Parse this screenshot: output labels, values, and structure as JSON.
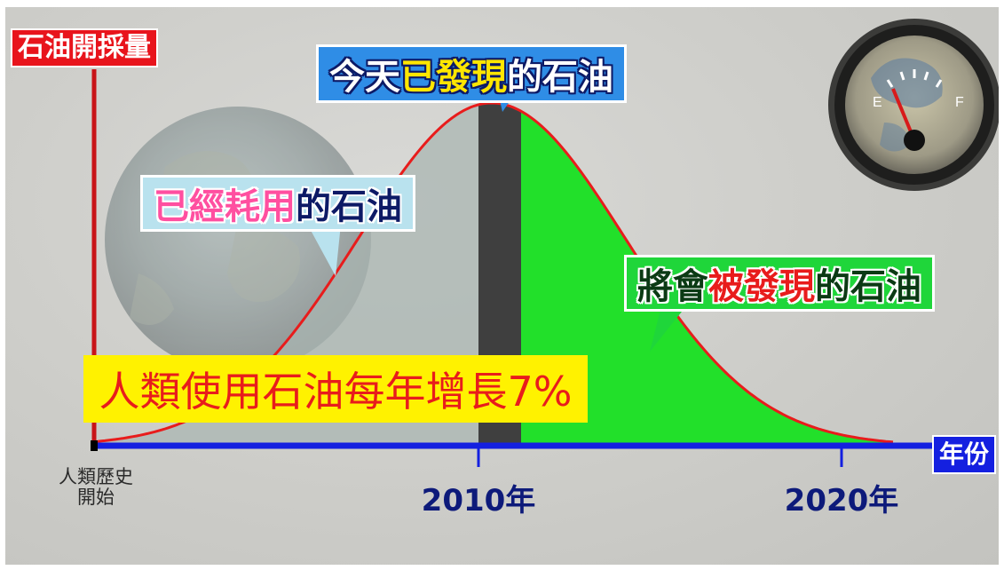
{
  "y_axis_title": "石油開採量",
  "x_axis_title": "年份",
  "callouts": {
    "today": {
      "segments": [
        {
          "text": "今天",
          "color": "white"
        },
        {
          "text": "已發現",
          "color": "yellow"
        },
        {
          "text": "的石油",
          "color": "white"
        }
      ]
    },
    "consumed": {
      "segments": [
        {
          "text": "已經耗用",
          "color": "pink"
        },
        {
          "text": "的石油",
          "color": "navy"
        }
      ]
    },
    "future": {
      "segments": [
        {
          "text": "將會",
          "color": "green-dark"
        },
        {
          "text": "被發現",
          "color": "red"
        },
        {
          "text": "的石油",
          "color": "green-dark"
        }
      ]
    }
  },
  "growth_note": "人類使用石油每年增長7%",
  "x_ticks": {
    "start": "人類歷史開始",
    "start_lines": [
      "人類歷史",
      "開始"
    ],
    "y2010": "2010年",
    "y2020": "2020年"
  },
  "colors": {
    "curve": "#e81c1c",
    "consumed_fill": "#a9b6b2",
    "today_band": "#3f3f3f",
    "future_fill": "#22e02a",
    "axis_x": "#1420e0",
    "axis_y": "#c81418"
  },
  "icons": {
    "gauge": "fuel-gauge-icon",
    "globe": "globe-icon"
  },
  "chart_data": {
    "type": "area",
    "title": "",
    "xlabel": "年份",
    "ylabel": "石油開採量",
    "x_tick_labels": [
      "人類歷史開始",
      "2010年",
      "2020年"
    ],
    "regions": [
      "已經耗用的石油",
      "今天已發現的石油",
      "將會被發現的石油"
    ],
    "annotation": "人類使用石油每年增長7%"
  }
}
